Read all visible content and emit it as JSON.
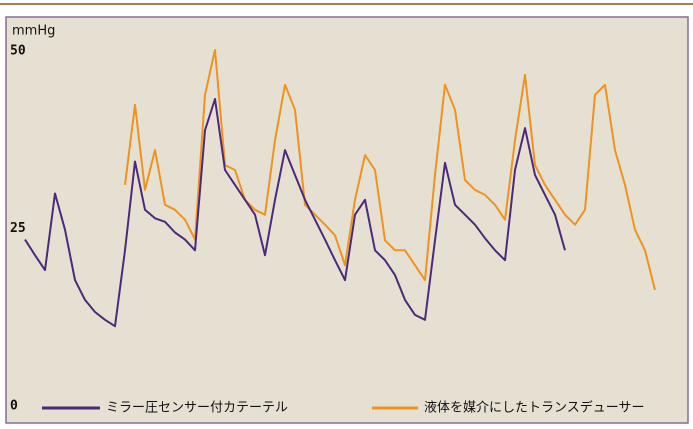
{
  "chart_data": {
    "type": "line",
    "y_label": "mmHg",
    "categories": [
      null,
      null,
      null,
      null,
      null,
      null,
      null,
      null,
      null,
      null,
      null,
      null,
      null,
      null,
      null,
      null,
      null,
      null,
      null,
      null,
      null,
      null,
      null,
      null,
      null,
      null,
      null,
      null,
      null,
      null,
      null,
      null,
      null,
      null,
      null,
      null,
      null,
      null,
      null,
      null,
      null,
      null,
      null,
      null,
      null,
      null,
      null,
      null,
      null,
      null,
      null,
      null,
      null,
      null,
      null,
      null,
      null,
      null,
      null,
      null,
      null,
      null,
      null,
      null
    ],
    "series": [
      {
        "name": "ミラー圧センサー付カテーテル",
        "color": "#4b2a7a",
        "values": [
          24,
          21.8,
          19.7,
          30.5,
          25.4,
          18.3,
          15.5,
          13.8,
          12.7,
          11.8,
          22.5,
          35,
          28.2,
          27,
          26.5,
          25,
          24,
          22.5,
          39.4,
          43.8,
          33.8,
          31.7,
          29.6,
          27.5,
          21.8,
          29.6,
          36.6,
          33.1,
          29.6,
          26.8,
          24,
          21.1,
          18.3,
          27.5,
          29.6,
          22.5,
          21.1,
          19,
          15.5,
          13.4,
          12.7,
          23.9,
          34.8,
          28.9,
          27.5,
          26.1,
          24.2,
          22.5,
          21.1,
          33.8,
          39.7,
          33.1,
          30.3,
          27.5,
          22.5,
          null,
          null,
          null,
          null,
          null,
          null,
          null,
          null,
          null
        ]
      },
      {
        "name": "液体を媒介にしたトランスデューサー",
        "color": "#f0921e",
        "values": [
          null,
          null,
          null,
          null,
          null,
          null,
          null,
          null,
          null,
          null,
          31.7,
          43,
          31,
          36.6,
          28.9,
          28.2,
          26.8,
          24,
          44.4,
          50.7,
          34.5,
          33.8,
          29.6,
          28.2,
          27.5,
          38,
          45.8,
          42.3,
          28.9,
          27.5,
          26.1,
          24.6,
          20.4,
          29.6,
          35.9,
          33.8,
          23.9,
          22.5,
          22.5,
          20.4,
          18.3,
          33.1,
          45.8,
          42.3,
          32.4,
          31,
          30.3,
          28.9,
          26.8,
          38,
          47.2,
          34.5,
          31.7,
          29.6,
          27.5,
          26.1,
          28.2,
          44.4,
          45.8,
          36.6,
          31.7,
          25.4,
          22.5,
          16.9
        ]
      }
    ],
    "ylim": [
      0,
      50
    ],
    "yticks": [
      0,
      25,
      50
    ],
    "grid": false,
    "legend": "bottom"
  }
}
